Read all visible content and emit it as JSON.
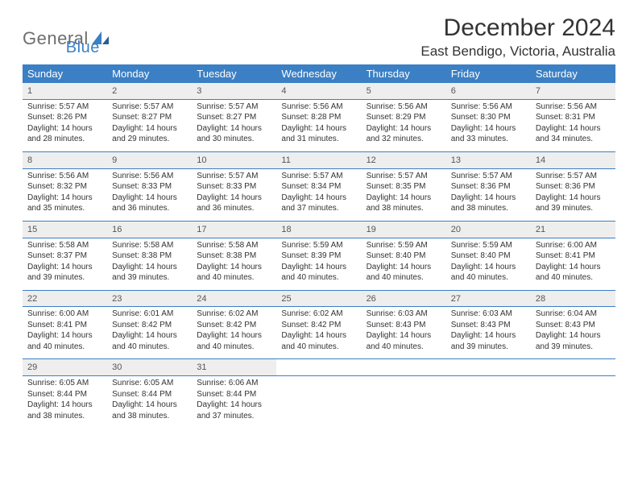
{
  "brand": {
    "part1": "General",
    "part2": "Blue"
  },
  "title": "December 2024",
  "location": "East Bendigo, Victoria, Australia",
  "colors": {
    "accent": "#3b7fc4",
    "header_bg": "#3b7fc4",
    "header_text": "#ffffff",
    "daynum_bg": "#eeeeee",
    "text": "#333333",
    "logo_gray": "#6e6e6e"
  },
  "weekdays": [
    "Sunday",
    "Monday",
    "Tuesday",
    "Wednesday",
    "Thursday",
    "Friday",
    "Saturday"
  ],
  "weeks": [
    [
      {
        "n": "1",
        "sr": "Sunrise: 5:57 AM",
        "ss": "Sunset: 8:26 PM",
        "d1": "Daylight: 14 hours",
        "d2": "and 28 minutes."
      },
      {
        "n": "2",
        "sr": "Sunrise: 5:57 AM",
        "ss": "Sunset: 8:27 PM",
        "d1": "Daylight: 14 hours",
        "d2": "and 29 minutes."
      },
      {
        "n": "3",
        "sr": "Sunrise: 5:57 AM",
        "ss": "Sunset: 8:27 PM",
        "d1": "Daylight: 14 hours",
        "d2": "and 30 minutes."
      },
      {
        "n": "4",
        "sr": "Sunrise: 5:56 AM",
        "ss": "Sunset: 8:28 PM",
        "d1": "Daylight: 14 hours",
        "d2": "and 31 minutes."
      },
      {
        "n": "5",
        "sr": "Sunrise: 5:56 AM",
        "ss": "Sunset: 8:29 PM",
        "d1": "Daylight: 14 hours",
        "d2": "and 32 minutes."
      },
      {
        "n": "6",
        "sr": "Sunrise: 5:56 AM",
        "ss": "Sunset: 8:30 PM",
        "d1": "Daylight: 14 hours",
        "d2": "and 33 minutes."
      },
      {
        "n": "7",
        "sr": "Sunrise: 5:56 AM",
        "ss": "Sunset: 8:31 PM",
        "d1": "Daylight: 14 hours",
        "d2": "and 34 minutes."
      }
    ],
    [
      {
        "n": "8",
        "sr": "Sunrise: 5:56 AM",
        "ss": "Sunset: 8:32 PM",
        "d1": "Daylight: 14 hours",
        "d2": "and 35 minutes."
      },
      {
        "n": "9",
        "sr": "Sunrise: 5:56 AM",
        "ss": "Sunset: 8:33 PM",
        "d1": "Daylight: 14 hours",
        "d2": "and 36 minutes."
      },
      {
        "n": "10",
        "sr": "Sunrise: 5:57 AM",
        "ss": "Sunset: 8:33 PM",
        "d1": "Daylight: 14 hours",
        "d2": "and 36 minutes."
      },
      {
        "n": "11",
        "sr": "Sunrise: 5:57 AM",
        "ss": "Sunset: 8:34 PM",
        "d1": "Daylight: 14 hours",
        "d2": "and 37 minutes."
      },
      {
        "n": "12",
        "sr": "Sunrise: 5:57 AM",
        "ss": "Sunset: 8:35 PM",
        "d1": "Daylight: 14 hours",
        "d2": "and 38 minutes."
      },
      {
        "n": "13",
        "sr": "Sunrise: 5:57 AM",
        "ss": "Sunset: 8:36 PM",
        "d1": "Daylight: 14 hours",
        "d2": "and 38 minutes."
      },
      {
        "n": "14",
        "sr": "Sunrise: 5:57 AM",
        "ss": "Sunset: 8:36 PM",
        "d1": "Daylight: 14 hours",
        "d2": "and 39 minutes."
      }
    ],
    [
      {
        "n": "15",
        "sr": "Sunrise: 5:58 AM",
        "ss": "Sunset: 8:37 PM",
        "d1": "Daylight: 14 hours",
        "d2": "and 39 minutes."
      },
      {
        "n": "16",
        "sr": "Sunrise: 5:58 AM",
        "ss": "Sunset: 8:38 PM",
        "d1": "Daylight: 14 hours",
        "d2": "and 39 minutes."
      },
      {
        "n": "17",
        "sr": "Sunrise: 5:58 AM",
        "ss": "Sunset: 8:38 PM",
        "d1": "Daylight: 14 hours",
        "d2": "and 40 minutes."
      },
      {
        "n": "18",
        "sr": "Sunrise: 5:59 AM",
        "ss": "Sunset: 8:39 PM",
        "d1": "Daylight: 14 hours",
        "d2": "and 40 minutes."
      },
      {
        "n": "19",
        "sr": "Sunrise: 5:59 AM",
        "ss": "Sunset: 8:40 PM",
        "d1": "Daylight: 14 hours",
        "d2": "and 40 minutes."
      },
      {
        "n": "20",
        "sr": "Sunrise: 5:59 AM",
        "ss": "Sunset: 8:40 PM",
        "d1": "Daylight: 14 hours",
        "d2": "and 40 minutes."
      },
      {
        "n": "21",
        "sr": "Sunrise: 6:00 AM",
        "ss": "Sunset: 8:41 PM",
        "d1": "Daylight: 14 hours",
        "d2": "and 40 minutes."
      }
    ],
    [
      {
        "n": "22",
        "sr": "Sunrise: 6:00 AM",
        "ss": "Sunset: 8:41 PM",
        "d1": "Daylight: 14 hours",
        "d2": "and 40 minutes."
      },
      {
        "n": "23",
        "sr": "Sunrise: 6:01 AM",
        "ss": "Sunset: 8:42 PM",
        "d1": "Daylight: 14 hours",
        "d2": "and 40 minutes."
      },
      {
        "n": "24",
        "sr": "Sunrise: 6:02 AM",
        "ss": "Sunset: 8:42 PM",
        "d1": "Daylight: 14 hours",
        "d2": "and 40 minutes."
      },
      {
        "n": "25",
        "sr": "Sunrise: 6:02 AM",
        "ss": "Sunset: 8:42 PM",
        "d1": "Daylight: 14 hours",
        "d2": "and 40 minutes."
      },
      {
        "n": "26",
        "sr": "Sunrise: 6:03 AM",
        "ss": "Sunset: 8:43 PM",
        "d1": "Daylight: 14 hours",
        "d2": "and 40 minutes."
      },
      {
        "n": "27",
        "sr": "Sunrise: 6:03 AM",
        "ss": "Sunset: 8:43 PM",
        "d1": "Daylight: 14 hours",
        "d2": "and 39 minutes."
      },
      {
        "n": "28",
        "sr": "Sunrise: 6:04 AM",
        "ss": "Sunset: 8:43 PM",
        "d1": "Daylight: 14 hours",
        "d2": "and 39 minutes."
      }
    ],
    [
      {
        "n": "29",
        "sr": "Sunrise: 6:05 AM",
        "ss": "Sunset: 8:44 PM",
        "d1": "Daylight: 14 hours",
        "d2": "and 38 minutes."
      },
      {
        "n": "30",
        "sr": "Sunrise: 6:05 AM",
        "ss": "Sunset: 8:44 PM",
        "d1": "Daylight: 14 hours",
        "d2": "and 38 minutes."
      },
      {
        "n": "31",
        "sr": "Sunrise: 6:06 AM",
        "ss": "Sunset: 8:44 PM",
        "d1": "Daylight: 14 hours",
        "d2": "and 37 minutes."
      },
      null,
      null,
      null,
      null
    ]
  ]
}
